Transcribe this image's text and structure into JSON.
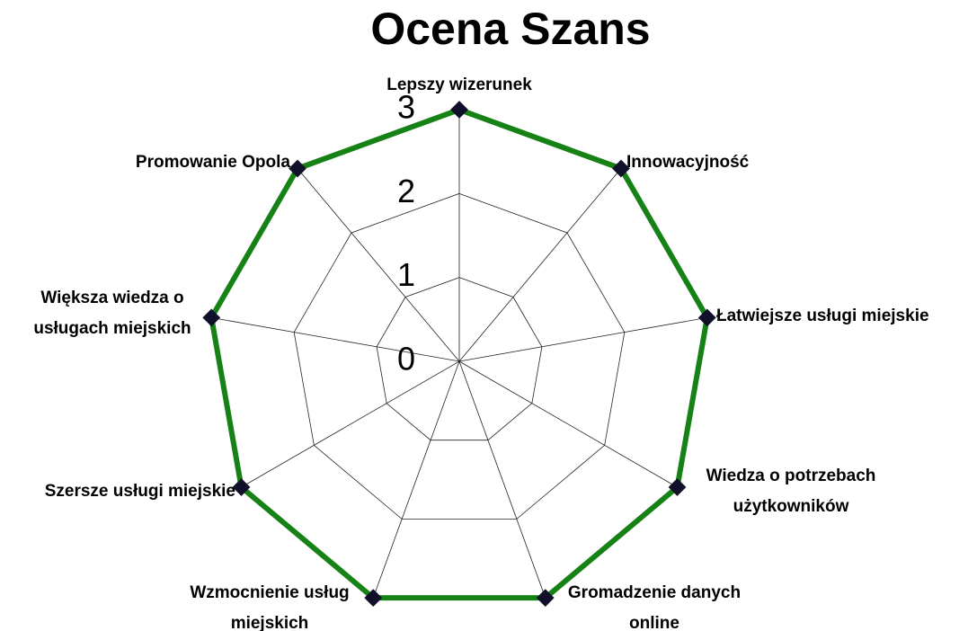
{
  "chart_data": {
    "type": "radar",
    "title": "Ocena Szans",
    "categories": [
      "Lepszy wizerunek",
      "Innowacyjność",
      "Łatwiejsze usługi miejskie",
      "Wiedza o potrzebach użytkowników",
      "Gromadzenie danych online",
      "Wzmocnienie usług miejskich",
      "Szersze usługi miejskie",
      "Większa wiedza o usługach miejskich",
      "Promowanie Opola"
    ],
    "series": [
      {
        "color": "#168216",
        "values": [
          3,
          3,
          3,
          3,
          3,
          3,
          3,
          3,
          3
        ]
      }
    ],
    "ylim": [
      0,
      3
    ],
    "yticks": [
      0,
      1,
      2,
      3
    ],
    "grid": true
  }
}
